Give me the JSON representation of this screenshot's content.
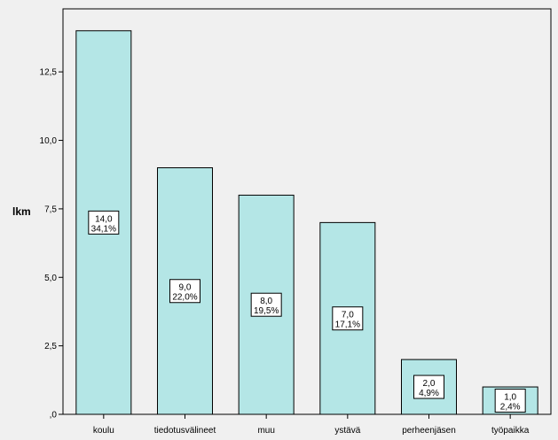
{
  "chart_data": {
    "type": "bar",
    "categories": [
      "koulu",
      "tiedotusvälineet",
      "muu",
      "ystävä",
      "perheenjäsen",
      "työpaikka"
    ],
    "values": [
      14,
      9,
      8,
      7,
      2,
      1
    ],
    "value_labels": [
      "14,0",
      "9,0",
      "8,0",
      "7,0",
      "2,0",
      "1,0"
    ],
    "percent_labels": [
      "34,1%",
      "22,0%",
      "19,5%",
      "17,1%",
      "4,9%",
      "2,4%"
    ],
    "ylabel": "lkm",
    "ylim": [
      0,
      14.8
    ],
    "yticks": [
      0,
      2.5,
      5,
      7.5,
      10,
      12.5
    ],
    "ytick_labels": [
      ",0",
      "2,5",
      "5,0",
      "7,5",
      "10,0",
      "12,5"
    ],
    "grid": false,
    "colors": {
      "bar_fill": "#b4e6e6",
      "bar_stroke": "#000000",
      "plot_bg": "#f0f0f0",
      "label_box": "#ffffff"
    }
  }
}
